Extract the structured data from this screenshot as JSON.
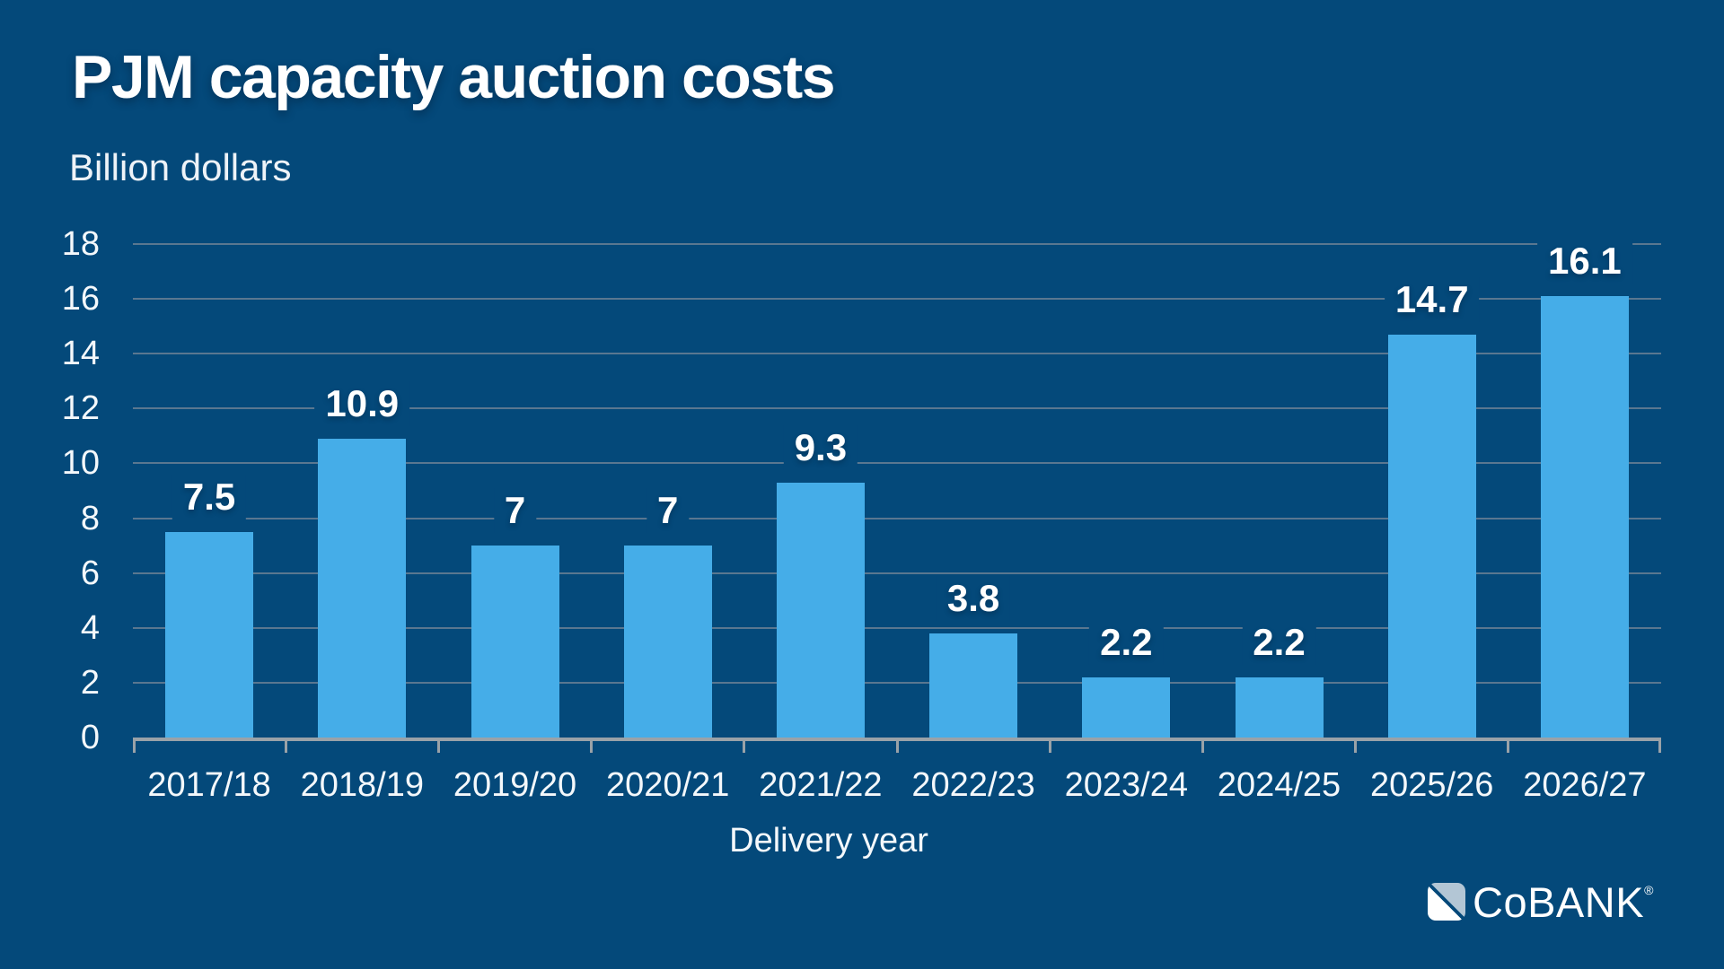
{
  "title": "PJM capacity auction costs",
  "subtitle": "Billion dollars",
  "footer": {
    "logo_text": "CoBANK",
    "registered_mark": "®"
  },
  "colors": {
    "background": "#04497a",
    "bar": "#45ade8",
    "gridline": "#5a7790",
    "axis": "#9aa2a8",
    "text": "#ffffff",
    "logo_gray_blue": "#b3c6d5"
  },
  "chart_data": {
    "type": "bar",
    "title": "PJM capacity auction costs",
    "subtitle": "Billion dollars",
    "xlabel": "Delivery year",
    "ylabel": "Billion dollars",
    "categories": [
      "2017/18",
      "2018/19",
      "2019/20",
      "2020/21",
      "2021/22",
      "2022/23",
      "2023/24",
      "2024/25",
      "2025/26",
      "2026/27"
    ],
    "values": [
      7.5,
      10.9,
      7,
      7,
      9.3,
      3.8,
      2.2,
      2.2,
      14.7,
      16.1
    ],
    "value_labels": [
      "7.5",
      "10.9",
      "7",
      "7",
      "9.3",
      "3.8",
      "2.2",
      "2.2",
      "14.7",
      "16.1"
    ],
    "ylim": [
      0,
      18
    ],
    "ytick_step": 2,
    "yticks": [
      0,
      2,
      4,
      6,
      8,
      10,
      12,
      14,
      16,
      18
    ],
    "grid": "horizontal",
    "legend": "none"
  }
}
